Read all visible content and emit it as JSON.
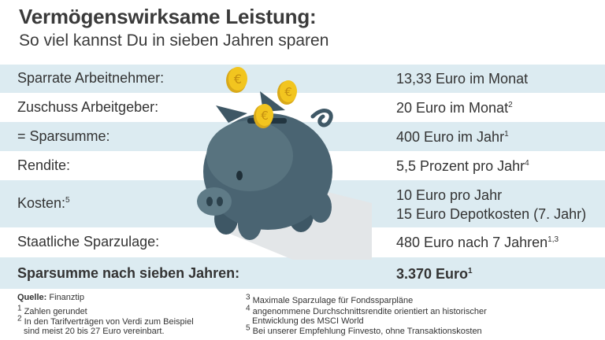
{
  "title": "Vermögenswirksame Leistung:",
  "subtitle": "So viel kannst Du in sieben Jahren sparen",
  "rows": [
    {
      "label": "Sparrate Arbeitnehmer:",
      "value": "13,33 Euro im Monat",
      "sup": ""
    },
    {
      "label": "Zuschuss Arbeitgeber:",
      "value": "20 Euro im Monat",
      "sup": "2"
    },
    {
      "label": "= Sparsumme:",
      "value": "400 Euro im Jahr",
      "sup": "1"
    },
    {
      "label": "Rendite:",
      "value": "5,5 Prozent pro Jahr",
      "sup": "4"
    },
    {
      "label": "Kosten:",
      "label_sup": "5",
      "value": "10 Euro pro Jahr",
      "value2": "15 Euro Depotkosten (7. Jahr)"
    },
    {
      "label": "Staatliche Sparzulage:",
      "value": "480 Euro nach 7 Jahren",
      "sup": "1,3"
    }
  ],
  "total": {
    "label": "Sparsumme nach sieben Jahren:",
    "value": "3.370 Euro",
    "sup": "1"
  },
  "source": {
    "label": "Quelle:",
    "value": "Finanztip"
  },
  "footnotes_left": [
    {
      "num": "1",
      "text": "Zahlen gerundet"
    },
    {
      "num": "2",
      "text": "In den Tarifverträgen von Verdi zum Beispiel"
    },
    {
      "num": "",
      "text": "sind meist 20 bis 27 Euro vereinbart."
    }
  ],
  "footnotes_right": [
    {
      "num": "3",
      "text": "Maximale Sparzulage für Fondssparpläne"
    },
    {
      "num": "4",
      "text": "angenommene Durchschnittsrendite orientiert an historischer"
    },
    {
      "num": "",
      "text": "Entwicklung des MSCI World"
    },
    {
      "num": "5",
      "text": "Bei unserer Empfehlung Finvesto, ohne Transaktionskosten"
    }
  ],
  "coin_symbol": "€",
  "colors": {
    "shaded_row": "#dcebf1",
    "pig": "#4a6472",
    "coin": "#f2c51f"
  }
}
